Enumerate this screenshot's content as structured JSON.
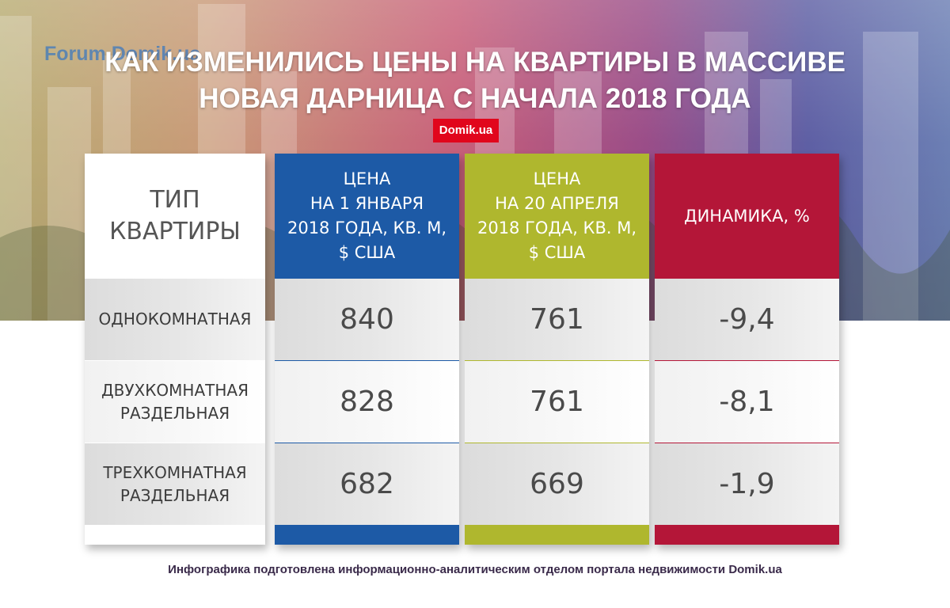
{
  "watermark": "Forum.Domik.ua",
  "brand": "Domik.ua",
  "footer": "Инфографика подготовлена информационно-аналитическим отделом портала недвижимости Domik.ua",
  "colors": {
    "jan": "#1d5aa6",
    "apr": "#afb72e",
    "dyn": "#b41638",
    "badge": "#e1061c"
  },
  "chart_data": {
    "type": "table",
    "title": [
      "КАК ИЗМЕНИЛИСЬ ЦЕНЫ НА КВАРТИРЫ В МАССИВЕ",
      "НОВАЯ ДАРНИЦА С НАЧАЛА 2018 ГОДА"
    ],
    "columns": [
      "ТИП\nКВАРТИРЫ",
      "ЦЕНА\nНА 1 ЯНВАРЯ\n2018 ГОДА, КВ. М,\n$ США",
      "ЦЕНА\nНА 20 АПРЕЛЯ\n2018 ГОДА, КВ. М,\n$ США",
      "ДИНАМИКА, %"
    ],
    "rows": [
      {
        "type": "ОДНОКОМНАТНАЯ",
        "jan": "840",
        "apr": "761",
        "dyn": "-9,4"
      },
      {
        "type": "ДВУХКОМНАТНАЯ\nРАЗДЕЛЬНАЯ",
        "jan": "828",
        "apr": "761",
        "dyn": "-8,1"
      },
      {
        "type": "ТРЕХКОМНАТНАЯ\nРАЗДЕЛЬНАЯ",
        "jan": "682",
        "apr": "669",
        "dyn": "-1,9"
      }
    ]
  }
}
